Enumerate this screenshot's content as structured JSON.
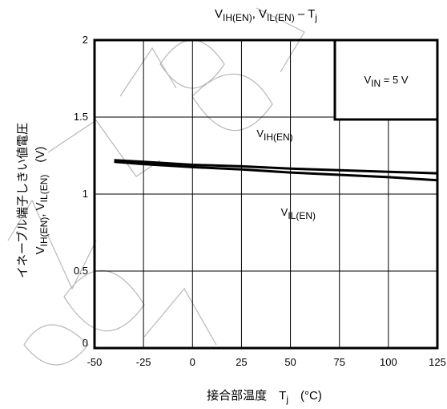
{
  "chart_data": {
    "type": "line",
    "title": {
      "main": "V",
      "sub1": "IH(EN)",
      "mid": ", V",
      "sub2": "IL(EN)",
      "tail": " – T",
      "sub3": "j"
    },
    "xlabel": {
      "text": "接合部温度　T",
      "sub": "j",
      "unit": "　(°C)"
    },
    "ylabel": {
      "line1": "イネーブル端子しきい値電圧",
      "line2a": "V",
      "line2b": "IH(EN)",
      "line2c": ", V",
      "line2d": "IL(EN)",
      "line2e": "　(V)"
    },
    "xlim": [
      -50,
      125
    ],
    "ylim": [
      0,
      2
    ],
    "x_ticks": [
      "-50",
      "-25",
      "0",
      "25",
      "50",
      "75",
      "100",
      "125"
    ],
    "y_ticks": [
      "0",
      "0.5",
      "1",
      "1.5",
      "2"
    ],
    "x_tick_values": [
      -50,
      -25,
      0,
      25,
      50,
      75,
      100,
      125
    ],
    "y_tick_values": [
      0,
      0.5,
      1,
      1.5,
      2
    ],
    "grid": true,
    "condition_box": {
      "v": "V",
      "sub": "IN",
      "rest": " = 5 V"
    },
    "series": [
      {
        "name": "IH(EN)",
        "x": [
          -40,
          -25,
          0,
          25,
          50,
          75,
          100,
          125
        ],
        "values": [
          1.22,
          1.21,
          1.19,
          1.18,
          1.165,
          1.155,
          1.145,
          1.135
        ]
      },
      {
        "name": "IL(EN)",
        "x": [
          -40,
          -25,
          0,
          25,
          50,
          75,
          100,
          125
        ],
        "values": [
          1.21,
          1.195,
          1.175,
          1.16,
          1.14,
          1.125,
          1.11,
          1.09
        ]
      }
    ],
    "series_labels": [
      {
        "v": "V",
        "sub": "IH(EN)",
        "at": [
          42,
          1.37
        ]
      },
      {
        "v": "V",
        "sub": "IL(EN)",
        "at": [
          54,
          0.86
        ]
      }
    ]
  },
  "colors": {
    "line": "#000000",
    "grid": "#000000",
    "watermark": "#b8b8b8"
  }
}
